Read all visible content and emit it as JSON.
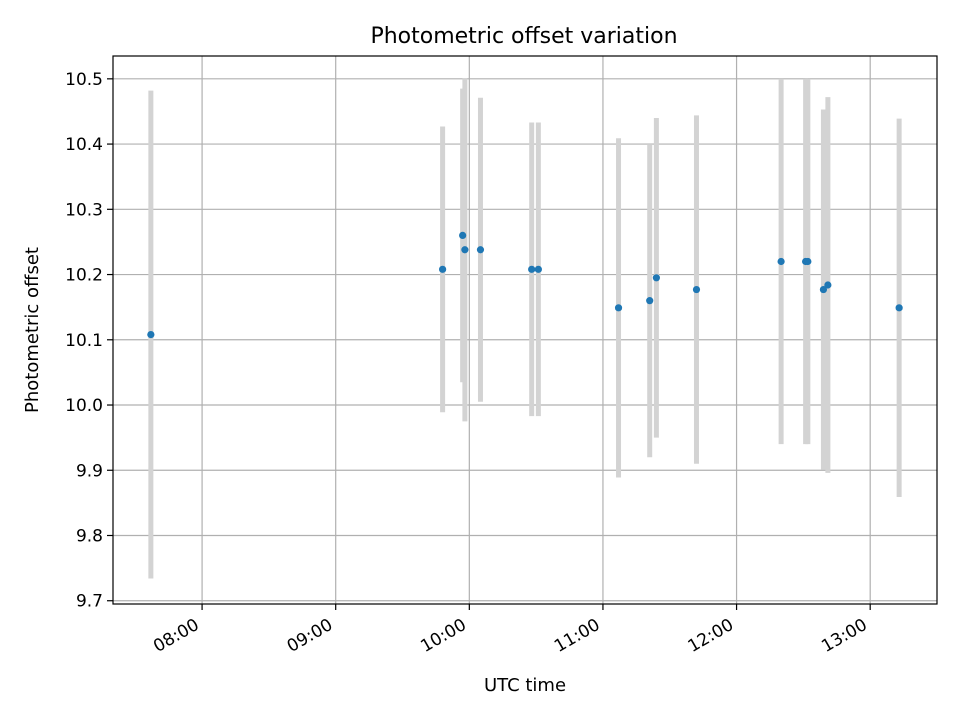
{
  "chart_data": {
    "type": "scatter",
    "title": "Photometric offset variation",
    "xlabel": "UTC time",
    "ylabel": "Photometric offset",
    "grid": true,
    "legend": "none",
    "xlim": [
      "07:20",
      "13:30"
    ],
    "ylim": [
      9.695,
      10.535
    ],
    "x_ticks": [
      "08:00",
      "09:00",
      "10:00",
      "11:00",
      "12:00",
      "13:00"
    ],
    "y_ticks": [
      9.7,
      9.8,
      9.9,
      10.0,
      10.1,
      10.2,
      10.3,
      10.4,
      10.5
    ],
    "colors": {
      "points": "#1f77b4",
      "errorbars": "#d3d3d3",
      "grid": "#b0b0b0"
    },
    "series": [
      {
        "points": [
          {
            "x": "07:37",
            "y": 10.108,
            "err": 0.374
          },
          {
            "x": "09:48",
            "y": 10.208,
            "err": 0.219
          },
          {
            "x": "09:57",
            "y": 10.26,
            "err": 0.225
          },
          {
            "x": "09:58",
            "y": 10.238,
            "err": 0.263
          },
          {
            "x": "10:05",
            "y": 10.238,
            "err": 0.233
          },
          {
            "x": "10:28",
            "y": 10.208,
            "err": 0.225
          },
          {
            "x": "10:31",
            "y": 10.208,
            "err": 0.225
          },
          {
            "x": "11:07",
            "y": 10.149,
            "err": 0.26
          },
          {
            "x": "11:21",
            "y": 10.16,
            "err": 0.24
          },
          {
            "x": "11:24",
            "y": 10.195,
            "err": 0.245
          },
          {
            "x": "11:42",
            "y": 10.177,
            "err": 0.267
          },
          {
            "x": "12:20",
            "y": 10.22,
            "err": 0.28
          },
          {
            "x": "12:31",
            "y": 10.22,
            "err": 0.28
          },
          {
            "x": "12:32",
            "y": 10.22,
            "err": 0.28
          },
          {
            "x": "12:39",
            "y": 10.177,
            "err": 0.276
          },
          {
            "x": "12:41",
            "y": 10.184,
            "err": 0.288
          },
          {
            "x": "13:13",
            "y": 10.149,
            "err": 0.29
          }
        ]
      }
    ]
  }
}
